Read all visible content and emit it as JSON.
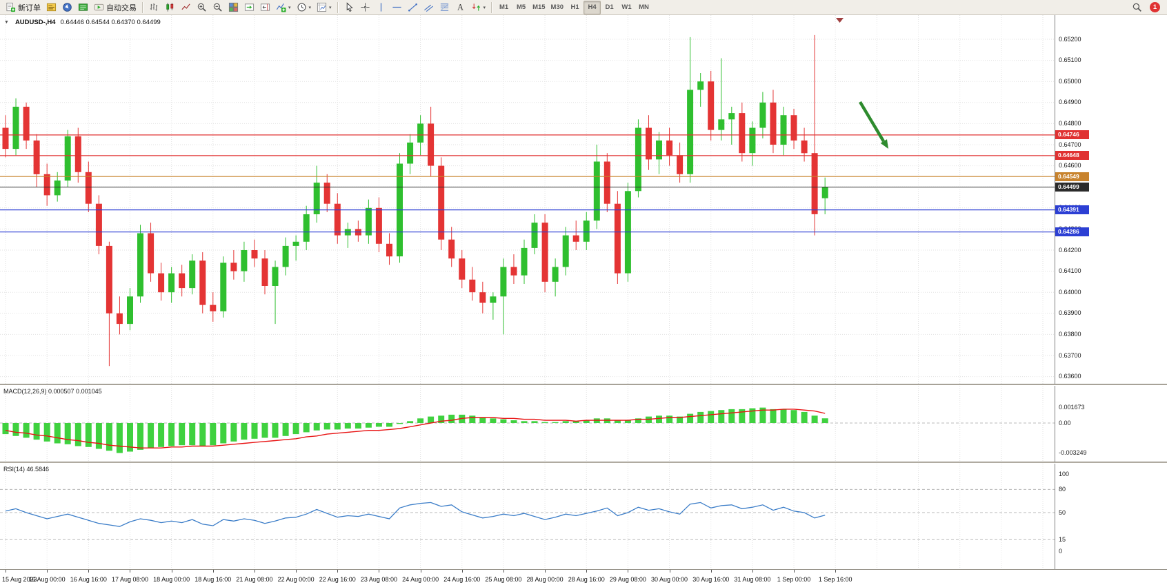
{
  "toolbar": {
    "groups": [
      {
        "name": "trade",
        "items": [
          {
            "name": "new-order-button",
            "icon": "new-order-icon",
            "label": "新订单"
          },
          {
            "name": "market-watch-button",
            "icon": "market-watch-icon"
          },
          {
            "name": "navigator-button",
            "icon": "navigator-icon"
          },
          {
            "name": "terminal-button",
            "icon": "terminal-icon"
          },
          {
            "name": "autotrading-button",
            "icon": "autotrading-icon",
            "label": "自动交易"
          }
        ]
      },
      {
        "name": "chart-view",
        "items": [
          {
            "name": "bar-chart-button",
            "icon": "bar-chart-icon"
          },
          {
            "name": "candlestick-chart-button",
            "icon": "candlestick-chart-icon"
          },
          {
            "name": "line-chart-button",
            "icon": "line-chart-icon"
          },
          {
            "name": "zoom-in-button",
            "icon": "zoom-in-icon"
          },
          {
            "name": "zoom-out-button",
            "icon": "zoom-out-icon"
          },
          {
            "name": "tile-windows-button",
            "icon": "tile-windows-icon"
          },
          {
            "name": "auto-scroll-button",
            "icon": "auto-scroll-icon"
          },
          {
            "name": "chart-shift-button",
            "icon": "chart-shift-icon"
          },
          {
            "name": "indicators-button",
            "icon": "indicators-icon",
            "caret": true
          },
          {
            "name": "periods-button",
            "icon": "periods-icon",
            "caret": true
          },
          {
            "name": "templates-button",
            "icon": "templates-icon",
            "caret": true
          }
        ]
      },
      {
        "name": "drawing",
        "items": [
          {
            "name": "cursor-button",
            "icon": "cursor-icon"
          },
          {
            "name": "crosshair-button",
            "icon": "crosshair-icon"
          },
          {
            "name": "vertical-line-button",
            "icon": "vertical-line-icon"
          },
          {
            "name": "horizontal-line-button",
            "icon": "horizontal-line-icon"
          },
          {
            "name": "trendline-button",
            "icon": "trendline-icon"
          },
          {
            "name": "channel-button",
            "icon": "channel-icon"
          },
          {
            "name": "fibonacci-button",
            "icon": "fibonacci-icon"
          },
          {
            "name": "text-button",
            "icon": "text-icon"
          },
          {
            "name": "arrows-button",
            "icon": "arrows-icon",
            "caret": true
          }
        ]
      },
      {
        "name": "timeframes",
        "items": [
          {
            "name": "timeframe-m1-button",
            "label": "M1"
          },
          {
            "name": "timeframe-m5-button",
            "label": "M5"
          },
          {
            "name": "timeframe-m15-button",
            "label": "M15"
          },
          {
            "name": "timeframe-m30-button",
            "label": "M30"
          },
          {
            "name": "timeframe-h1-button",
            "label": "H1"
          },
          {
            "name": "timeframe-h4-button",
            "label": "H4",
            "active": true
          },
          {
            "name": "timeframe-d1-button",
            "label": "D1"
          },
          {
            "name": "timeframe-w1-button",
            "label": "W1"
          },
          {
            "name": "timeframe-mn-button",
            "label": "MN"
          }
        ]
      }
    ],
    "right": [
      {
        "name": "search-button",
        "icon": "search-icon"
      },
      {
        "name": "notification-badge",
        "label": "1"
      }
    ]
  },
  "chart": {
    "one_click_arrow": "▼",
    "title_symbol": "AUDUSD-,H4",
    "title_ohlc": "0.64446 0.64544 0.64370 0.64499"
  },
  "chart_data": {
    "type": "candlestick",
    "symbol": "AUDUSD-",
    "timeframe": "H4",
    "current_ohlc": {
      "open": "0.64446",
      "high": "0.64544",
      "low": "0.64370",
      "close": "0.64499"
    },
    "up_color": "#2fbf2f",
    "down_color": "#e43434",
    "price_axis": [
      "0.65200",
      "0.65100",
      "0.65000",
      "0.64900",
      "0.64800",
      "0.64700",
      "0.64600",
      "0.64500",
      "0.64400",
      "0.64300",
      "0.64200",
      "0.64100",
      "0.64000",
      "0.63900",
      "0.63800",
      "0.63700",
      "0.63600"
    ],
    "time_axis": [
      "15 Aug 2023",
      "16 Aug 00:00",
      "16 Aug 16:00",
      "17 Aug 08:00",
      "18 Aug 00:00",
      "18 Aug 16:00",
      "21 Aug 08:00",
      "22 Aug 00:00",
      "22 Aug 16:00",
      "23 Aug 08:00",
      "24 Aug 00:00",
      "24 Aug 16:00",
      "25 Aug 08:00",
      "28 Aug 00:00",
      "28 Aug 16:00",
      "29 Aug 08:00",
      "30 Aug 00:00",
      "30 Aug 16:00",
      "31 Aug 08:00",
      "1 Sep 00:00",
      "1 Sep 16:00"
    ],
    "candles": [
      [
        0.6478,
        0.6484,
        0.6464,
        0.6468
      ],
      [
        0.6468,
        0.6492,
        0.6465,
        0.6488
      ],
      [
        0.6488,
        0.649,
        0.6468,
        0.6472
      ],
      [
        0.6472,
        0.6475,
        0.645,
        0.6456
      ],
      [
        0.6456,
        0.6461,
        0.6441,
        0.6446
      ],
      [
        0.6446,
        0.6457,
        0.6443,
        0.6453
      ],
      [
        0.6453,
        0.6477,
        0.645,
        0.6474
      ],
      [
        0.6474,
        0.6478,
        0.6452,
        0.6457
      ],
      [
        0.6457,
        0.6462,
        0.6438,
        0.6442
      ],
      [
        0.6442,
        0.6446,
        0.6418,
        0.6422
      ],
      [
        0.6422,
        0.6424,
        0.6365,
        0.639
      ],
      [
        0.639,
        0.6398,
        0.638,
        0.6385
      ],
      [
        0.6385,
        0.6402,
        0.6382,
        0.6398
      ],
      [
        0.6398,
        0.6432,
        0.6395,
        0.6428
      ],
      [
        0.6428,
        0.6433,
        0.6405,
        0.6409
      ],
      [
        0.6409,
        0.6414,
        0.6396,
        0.64
      ],
      [
        0.64,
        0.6412,
        0.6395,
        0.6409
      ],
      [
        0.6409,
        0.6413,
        0.6398,
        0.6402
      ],
      [
        0.6402,
        0.6418,
        0.6399,
        0.6415
      ],
      [
        0.6415,
        0.6419,
        0.639,
        0.6394
      ],
      [
        0.6394,
        0.64,
        0.6386,
        0.6391
      ],
      [
        0.6391,
        0.6417,
        0.6388,
        0.6414
      ],
      [
        0.6414,
        0.642,
        0.6406,
        0.641
      ],
      [
        0.641,
        0.6424,
        0.6405,
        0.642
      ],
      [
        0.642,
        0.6425,
        0.6412,
        0.6416
      ],
      [
        0.6416,
        0.642,
        0.6399,
        0.6403
      ],
      [
        0.6403,
        0.6415,
        0.6385,
        0.6412
      ],
      [
        0.6412,
        0.6426,
        0.6408,
        0.6422
      ],
      [
        0.6422,
        0.6427,
        0.6415,
        0.6424
      ],
      [
        0.6424,
        0.6441,
        0.642,
        0.6437
      ],
      [
        0.6437,
        0.646,
        0.6433,
        0.6452
      ],
      [
        0.6452,
        0.6456,
        0.6438,
        0.6442
      ],
      [
        0.6442,
        0.6447,
        0.6423,
        0.6427
      ],
      [
        0.6427,
        0.6433,
        0.6421,
        0.643
      ],
      [
        0.643,
        0.6434,
        0.6424,
        0.6427
      ],
      [
        0.6427,
        0.6444,
        0.6423,
        0.644
      ],
      [
        0.644,
        0.6445,
        0.6419,
        0.6423
      ],
      [
        0.6423,
        0.6428,
        0.6413,
        0.6417
      ],
      [
        0.6417,
        0.6466,
        0.6414,
        0.6461
      ],
      [
        0.6461,
        0.6475,
        0.6456,
        0.6471
      ],
      [
        0.6471,
        0.6484,
        0.6465,
        0.648
      ],
      [
        0.648,
        0.6488,
        0.6455,
        0.646
      ],
      [
        0.646,
        0.6464,
        0.642,
        0.6425
      ],
      [
        0.6425,
        0.6431,
        0.6412,
        0.6416
      ],
      [
        0.6416,
        0.642,
        0.6402,
        0.6406
      ],
      [
        0.6406,
        0.6412,
        0.6396,
        0.64
      ],
      [
        0.64,
        0.6405,
        0.639,
        0.6395
      ],
      [
        0.6395,
        0.64,
        0.6387,
        0.6398
      ],
      [
        0.6398,
        0.6416,
        0.638,
        0.6412
      ],
      [
        0.6412,
        0.6418,
        0.6404,
        0.6408
      ],
      [
        0.6408,
        0.6425,
        0.6404,
        0.6421
      ],
      [
        0.6421,
        0.6437,
        0.6418,
        0.6433
      ],
      [
        0.6433,
        0.6437,
        0.64,
        0.6405
      ],
      [
        0.6405,
        0.6416,
        0.6398,
        0.6412
      ],
      [
        0.6412,
        0.6431,
        0.6408,
        0.6427
      ],
      [
        0.6427,
        0.6434,
        0.642,
        0.6424
      ],
      [
        0.6424,
        0.6438,
        0.642,
        0.6434
      ],
      [
        0.6434,
        0.647,
        0.643,
        0.6462
      ],
      [
        0.6462,
        0.6466,
        0.6438,
        0.6442
      ],
      [
        0.6442,
        0.6448,
        0.6404,
        0.6409
      ],
      [
        0.6409,
        0.6452,
        0.6405,
        0.6448
      ],
      [
        0.6448,
        0.6482,
        0.6445,
        0.6478
      ],
      [
        0.6478,
        0.6484,
        0.6458,
        0.6463
      ],
      [
        0.6463,
        0.6476,
        0.6456,
        0.6472
      ],
      [
        0.6472,
        0.6478,
        0.646,
        0.6465
      ],
      [
        0.6465,
        0.6471,
        0.6452,
        0.6456
      ],
      [
        0.6456,
        0.6521,
        0.6452,
        0.6496
      ],
      [
        0.6496,
        0.6504,
        0.6488,
        0.65
      ],
      [
        0.65,
        0.6505,
        0.6472,
        0.6477
      ],
      [
        0.6477,
        0.6511,
        0.6472,
        0.6482
      ],
      [
        0.6482,
        0.6488,
        0.647,
        0.6485
      ],
      [
        0.6485,
        0.649,
        0.6462,
        0.6466
      ],
      [
        0.6466,
        0.6481,
        0.646,
        0.6478
      ],
      [
        0.6478,
        0.6495,
        0.6473,
        0.649
      ],
      [
        0.649,
        0.6496,
        0.6466,
        0.647
      ],
      [
        0.647,
        0.6488,
        0.6465,
        0.6484
      ],
      [
        0.6484,
        0.6487,
        0.6468,
        0.6472
      ],
      [
        0.6472,
        0.6478,
        0.6462,
        0.6466
      ],
      [
        0.6466,
        0.6522,
        0.6427,
        0.6437
      ],
      [
        0.64446,
        0.64544,
        0.6437,
        0.64499
      ]
    ],
    "horizontal_lines": [
      {
        "price": 0.64746,
        "label": "0.64746",
        "color": "#e03232"
      },
      {
        "price": 0.64648,
        "label": "0.64648",
        "color": "#e03232"
      },
      {
        "price": 0.64549,
        "label": "0.64549",
        "color": "#c8832d"
      },
      {
        "price": 0.64391,
        "label": "0.64391",
        "color": "#2c3fd4"
      },
      {
        "price": 0.64286,
        "label": "0.64286",
        "color": "#2c3fd4"
      }
    ],
    "current_price": {
      "price": 0.64499,
      "label": "0.64499",
      "color": "#2b2b2b"
    },
    "arrow_annotation": {
      "shape": "arrow",
      "direction": "down-right",
      "color": "#2e8b2e"
    },
    "indicators": {
      "macd": {
        "label": "MACD(12,26,9) 0.000507 0.001045",
        "params": [
          12,
          26,
          9
        ],
        "value": 0.000507,
        "signal_value": 0.001045,
        "bar_color": "#3fd13f",
        "signal_color": "#e81414",
        "axis_labels": [
          {
            "text": "0.001673",
            "v": 0.001673
          },
          {
            "text": "0.00",
            "v": 0
          },
          {
            "text": "-0.003249",
            "v": -0.003249
          }
        ],
        "values": [
          -0.0012,
          -0.0014,
          -0.0016,
          -0.0018,
          -0.002,
          -0.0022,
          -0.0023,
          -0.0025,
          -0.0026,
          -0.0028,
          -0.003,
          -0.003249,
          -0.0031,
          -0.0029,
          -0.0027,
          -0.0026,
          -0.0025,
          -0.0024,
          -0.0024,
          -0.0025,
          -0.0024,
          -0.0022,
          -0.002,
          -0.0018,
          -0.0017,
          -0.0016,
          -0.0016,
          -0.0014,
          -0.0012,
          -0.001,
          -0.0008,
          -0.0007,
          -0.0007,
          -0.0006,
          -0.0006,
          -0.0005,
          -0.0004,
          -0.0004,
          -0.0001,
          0.0002,
          0.0005,
          0.0007,
          0.0008,
          0.0009,
          0.0009,
          0.0008,
          0.0006,
          0.0005,
          0.0004,
          0.0003,
          0.0002,
          0.0002,
          0.0001,
          0.0001,
          0.0002,
          0.0002,
          0.0003,
          0.0005,
          0.0005,
          0.0003,
          0.0003,
          0.0005,
          0.0007,
          0.0008,
          0.0008,
          0.0007,
          0.001,
          0.0012,
          0.0013,
          0.0014,
          0.0015,
          0.0015,
          0.0016,
          0.001673,
          0.0015,
          0.0015,
          0.0014,
          0.0012,
          0.0008,
          0.000507
        ],
        "signal": [
          -0.0008,
          -0.001,
          -0.0011,
          -0.0013,
          -0.0014,
          -0.0016,
          -0.0018,
          -0.0019,
          -0.0021,
          -0.0022,
          -0.0024,
          -0.0025,
          -0.0026,
          -0.0027,
          -0.0027,
          -0.0027,
          -0.0026,
          -0.0026,
          -0.0025,
          -0.0025,
          -0.0025,
          -0.0024,
          -0.0023,
          -0.0022,
          -0.0021,
          -0.002,
          -0.0019,
          -0.0018,
          -0.0017,
          -0.0015,
          -0.0014,
          -0.0012,
          -0.0011,
          -0.001,
          -0.0009,
          -0.0008,
          -0.0008,
          -0.0007,
          -0.0006,
          -0.0004,
          -0.0002,
          0.0,
          0.0002,
          0.0003,
          0.0005,
          0.0006,
          0.0006,
          0.0006,
          0.0005,
          0.0005,
          0.0004,
          0.0004,
          0.0003,
          0.0003,
          0.0003,
          0.0002,
          0.0003,
          0.0003,
          0.0003,
          0.0003,
          0.0003,
          0.0004,
          0.0004,
          0.0005,
          0.0006,
          0.0006,
          0.0007,
          0.0008,
          0.0009,
          0.001,
          0.0011,
          0.0012,
          0.0013,
          0.0014,
          0.0014,
          0.0015,
          0.0015,
          0.0014,
          0.0013,
          0.001045
        ]
      },
      "rsi": {
        "label": "RSI(14) 46.5846",
        "period": 14,
        "value": 46.5846,
        "line_color": "#3b7dc8",
        "levels": [
          80,
          50,
          15
        ],
        "axis_labels": [
          {
            "text": "100",
            "v": 100
          },
          {
            "text": "80",
            "v": 80
          },
          {
            "text": "50",
            "v": 50
          },
          {
            "text": "15",
            "v": 15
          },
          {
            "text": "0",
            "v": 0
          }
        ],
        "values": [
          52,
          55,
          50,
          46,
          42,
          45,
          48,
          44,
          40,
          36,
          34,
          32,
          38,
          42,
          40,
          37,
          39,
          37,
          41,
          35,
          33,
          41,
          39,
          42,
          40,
          36,
          39,
          43,
          44,
          48,
          54,
          49,
          44,
          46,
          45,
          48,
          45,
          42,
          56,
          60,
          62,
          63,
          58,
          60,
          51,
          47,
          43,
          45,
          48,
          46,
          49,
          45,
          41,
          44,
          48,
          46,
          49,
          52,
          56,
          46,
          50,
          57,
          53,
          55,
          51,
          48,
          61,
          63,
          56,
          59,
          60,
          55,
          57,
          60,
          53,
          57,
          52,
          50,
          43,
          46.5846
        ]
      }
    }
  }
}
